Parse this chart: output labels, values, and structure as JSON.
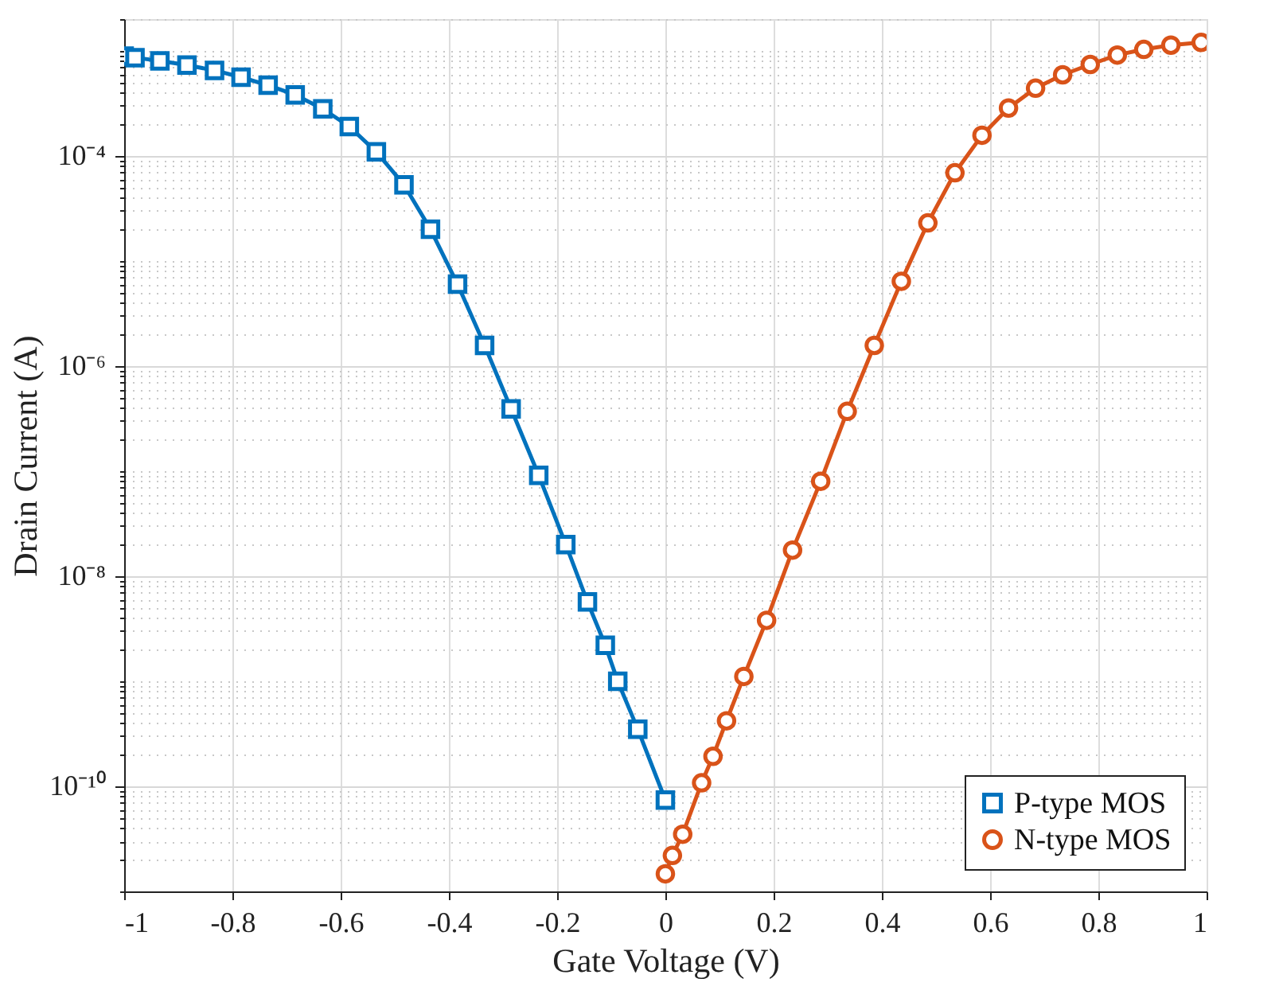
{
  "chart_data": {
    "type": "line",
    "xlabel": "Gate Voltage (V)",
    "ylabel": "Drain Current (A)",
    "xlim": [
      -1,
      1
    ],
    "xticks": [
      -1,
      -0.8,
      -0.6,
      -0.4,
      -0.2,
      0,
      0.2,
      0.4,
      0.6,
      0.8,
      1
    ],
    "ylim": [
      1e-11,
      0.002
    ],
    "yticks": [
      {
        "value": 1e-10,
        "label": "10⁻¹⁰"
      },
      {
        "value": 1e-08,
        "label": "10⁻⁸"
      },
      {
        "value": 1e-06,
        "label": "10⁻⁶"
      },
      {
        "value": 0.0001,
        "label": "10⁻⁴"
      }
    ],
    "log": "y",
    "grid": true,
    "legend": "bottom right",
    "line_style": "solid",
    "series": [
      {
        "name": "P-type MOS",
        "color": "#0072bd",
        "marker": "square",
        "x": [
          -1.0,
          -0.98,
          -0.934,
          -0.884,
          -0.833,
          -0.784,
          -0.734,
          -0.684,
          -0.633,
          -0.584,
          -0.534,
          -0.483,
          -0.434,
          -0.384,
          -0.334,
          -0.285,
          -0.234,
          -0.184,
          -0.144,
          -0.111,
          -0.088,
          -0.051,
          0.0
        ],
        "values": [
          0.00089,
          0.00086,
          0.0008,
          0.00073,
          0.00065,
          0.00056,
          0.00047,
          0.00038,
          0.00028,
          0.00019,
          0.000109,
          5.3e-05,
          2e-05,
          6e-06,
          1.57e-06,
          3.9e-07,
          9.1e-08,
          2e-08,
          5.7e-09,
          2.2e-09,
          1e-09,
          3.5e-10,
          7.4e-11
        ]
      },
      {
        "name": "N-type MOS",
        "color": "#d95319",
        "marker": "circle",
        "x": [
          0.0,
          0.013,
          0.032,
          0.067,
          0.088,
          0.113,
          0.145,
          0.187,
          0.235,
          0.287,
          0.336,
          0.386,
          0.436,
          0.485,
          0.535,
          0.585,
          0.634,
          0.684,
          0.734,
          0.785,
          0.835,
          0.884,
          0.934,
          0.99
        ],
        "values": [
          1.47e-11,
          2.2e-11,
          3.5e-11,
          1.08e-10,
          1.93e-10,
          4.2e-10,
          1.11e-09,
          3.8e-09,
          1.77e-08,
          8e-08,
          3.7e-07,
          1.57e-06,
          6.4e-06,
          2.3e-05,
          6.9e-05,
          0.000157,
          0.000285,
          0.00044,
          0.00059,
          0.00074,
          0.00091,
          0.00103,
          0.00113,
          0.0012
        ]
      }
    ]
  }
}
